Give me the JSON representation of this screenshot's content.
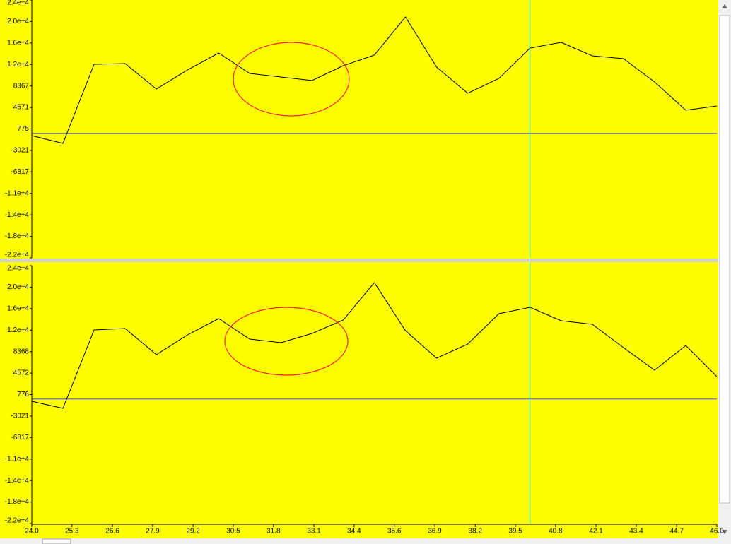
{
  "chart_data": [
    {
      "type": "line",
      "background": "#ffff00",
      "x": [
        24,
        25,
        26,
        27,
        28,
        29,
        30,
        31,
        32,
        33,
        34,
        35,
        36,
        37,
        38,
        39,
        40,
        41,
        42,
        43,
        44,
        45,
        46
      ],
      "series": [
        {
          "color": "#000000",
          "values": [
            -410,
            -1783,
            12194,
            12319,
            7826,
            11196,
            14191,
            10572,
            9948,
            9324,
            11945,
            13817,
            20556,
            11695,
            7077,
            9698,
            15064,
            16063,
            13692,
            13192,
            9074,
            4082,
            4831
          ]
        }
      ],
      "xlim": [
        24,
        46
      ],
      "ylim": [
        -22001,
        23551
      ],
      "yticks": [
        {
          "value": 23551,
          "label": "2.4e+4"
        },
        {
          "value": 19755,
          "label": "2.0e+4"
        },
        {
          "value": 15959,
          "label": "1.6e+4"
        },
        {
          "value": 12163,
          "label": "1.2e+4"
        },
        8367,
        4571,
        775,
        -3021,
        -6817,
        {
          "value": -10613,
          "label": "-1.1e+4"
        },
        {
          "value": -14409,
          "label": "-1.4e+4"
        },
        {
          "value": -18205,
          "label": "-1.8e+4"
        },
        {
          "value": -22001,
          "label": "-2.2e+4"
        }
      ],
      "zero_line_color": "#4a4aff",
      "cursor_x": 40,
      "cursor_color": "#00d8ff"
    },
    {
      "type": "line",
      "background": "#ffff00",
      "x": [
        24,
        25,
        26,
        27,
        28,
        29,
        30,
        31,
        32,
        33,
        34,
        35,
        36,
        37,
        38,
        39,
        40,
        41,
        42,
        43,
        44,
        45,
        46
      ],
      "series": [
        {
          "color": "#000000",
          "values": [
            -410,
            -1658,
            12195,
            12445,
            7827,
            11322,
            14192,
            10573,
            9949,
            11571,
            13942,
            20557,
            12070,
            7203,
            9699,
            15066,
            16189,
            13818,
            13194,
            9075,
            5082,
            9450,
            3958
          ]
        }
      ],
      "xlim": [
        24,
        46
      ],
      "ylim": [
        -22001,
        23552
      ],
      "yticks": [
        {
          "value": 23552,
          "label": "2.4e+4"
        },
        {
          "value": 19756,
          "label": "2.0e+4"
        },
        {
          "value": 15960,
          "label": "1.6e+4"
        },
        {
          "value": 12164,
          "label": "1.2e+4"
        },
        8368,
        4572,
        776,
        -3021,
        -6817,
        {
          "value": -10613,
          "label": "-1.1e+4"
        },
        {
          "value": -14409,
          "label": "-1.4e+4"
        },
        {
          "value": -18205,
          "label": "-1.8e+4"
        },
        {
          "value": -22001,
          "label": "-2.2e+4"
        }
      ],
      "xticks": [
        {
          "value": 24,
          "label": "24.0"
        },
        {
          "value": 25.29,
          "label": "25.3"
        },
        {
          "value": 26.59,
          "label": "26.6"
        },
        {
          "value": 27.88,
          "label": "27.9"
        },
        {
          "value": 29.18,
          "label": "29.2"
        },
        {
          "value": 30.47,
          "label": "30.5"
        },
        {
          "value": 31.76,
          "label": "31.8"
        },
        {
          "value": 33.06,
          "label": "33.1"
        },
        {
          "value": 34.35,
          "label": "34.4"
        },
        {
          "value": 35.64,
          "label": "35.6"
        },
        {
          "value": 36.94,
          "label": "36.9"
        },
        {
          "value": 38.24,
          "label": "38.2"
        },
        {
          "value": 39.53,
          "label": "39.5"
        },
        {
          "value": 40.82,
          "label": "40.8"
        },
        {
          "value": 42.12,
          "label": "42.1"
        },
        {
          "value": 43.41,
          "label": "43.4"
        },
        {
          "value": 44.71,
          "label": "44.7"
        },
        {
          "value": 46,
          "label": "46.0"
        }
      ],
      "zero_line_color": "#4a4aff",
      "cursor_x": 40,
      "cursor_color": "#00d8ff"
    }
  ]
}
